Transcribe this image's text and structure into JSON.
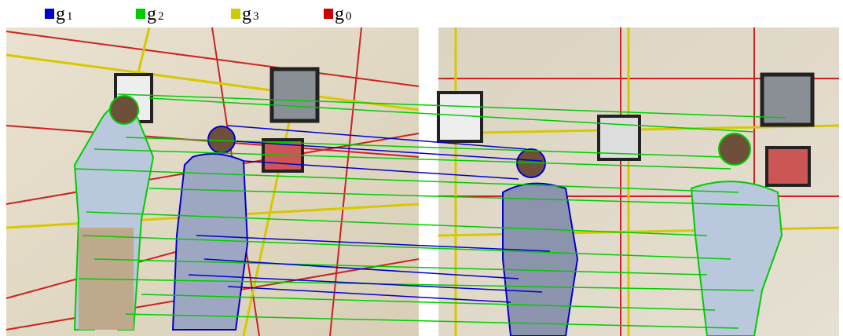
{
  "legend": [
    {
      "label": "g",
      "sub": "1",
      "color": "#0000cc"
    },
    {
      "label": "g",
      "sub": "2",
      "color": "#00cc00"
    },
    {
      "label": "g",
      "sub": "3",
      "color": "#cccc00"
    },
    {
      "label": "g",
      "sub": "0",
      "color": "#cc0000"
    }
  ]
}
